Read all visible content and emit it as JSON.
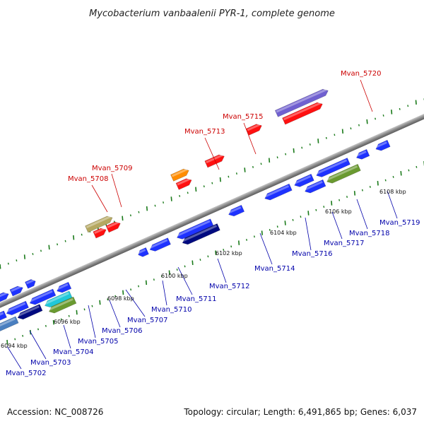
{
  "title": "Mycobacterium vanbaalenii PYR-1, complete genome",
  "footer": {
    "accession": "Accession: NC_008726",
    "summary": "Topology: circular; Length: 6,491,865 bp; Genes: 6,037"
  },
  "colors": {
    "forward_label": "#cc0000",
    "reverse_label": "#0000aa",
    "tick": "#1a7a1a",
    "backbone": "#8a8a8a"
  },
  "ticks": [
    {
      "label": "6094 kbp"
    },
    {
      "label": "6096 kbp"
    },
    {
      "label": "6098 kbp"
    },
    {
      "label": "6100 kbp"
    },
    {
      "label": "6102 kbp"
    },
    {
      "label": "6104 kbp"
    },
    {
      "label": "6106 kbp"
    },
    {
      "label": "6108 kbp"
    }
  ],
  "labels": [
    {
      "text": "Mvan_5702",
      "strand": "reverse"
    },
    {
      "text": "Mvan_5703",
      "strand": "reverse"
    },
    {
      "text": "Mvan_5704",
      "strand": "reverse"
    },
    {
      "text": "Mvan_5705",
      "strand": "reverse"
    },
    {
      "text": "Mvan_5706",
      "strand": "reverse"
    },
    {
      "text": "Mvan_5707",
      "strand": "reverse"
    },
    {
      "text": "Mvan_5708",
      "strand": "forward"
    },
    {
      "text": "Mvan_5709",
      "strand": "forward"
    },
    {
      "text": "Mvan_5710",
      "strand": "reverse"
    },
    {
      "text": "Mvan_5711",
      "strand": "reverse"
    },
    {
      "text": "Mvan_5712",
      "strand": "reverse"
    },
    {
      "text": "Mvan_5713",
      "strand": "forward"
    },
    {
      "text": "Mvan_5714",
      "strand": "reverse"
    },
    {
      "text": "Mvan_5715",
      "strand": "forward"
    },
    {
      "text": "Mvan_5716",
      "strand": "reverse"
    },
    {
      "text": "Mvan_5717",
      "strand": "reverse"
    },
    {
      "text": "Mvan_5718",
      "strand": "reverse"
    },
    {
      "text": "Mvan_5719",
      "strand": "reverse"
    },
    {
      "text": "Mvan_5720",
      "strand": "forward"
    }
  ]
}
